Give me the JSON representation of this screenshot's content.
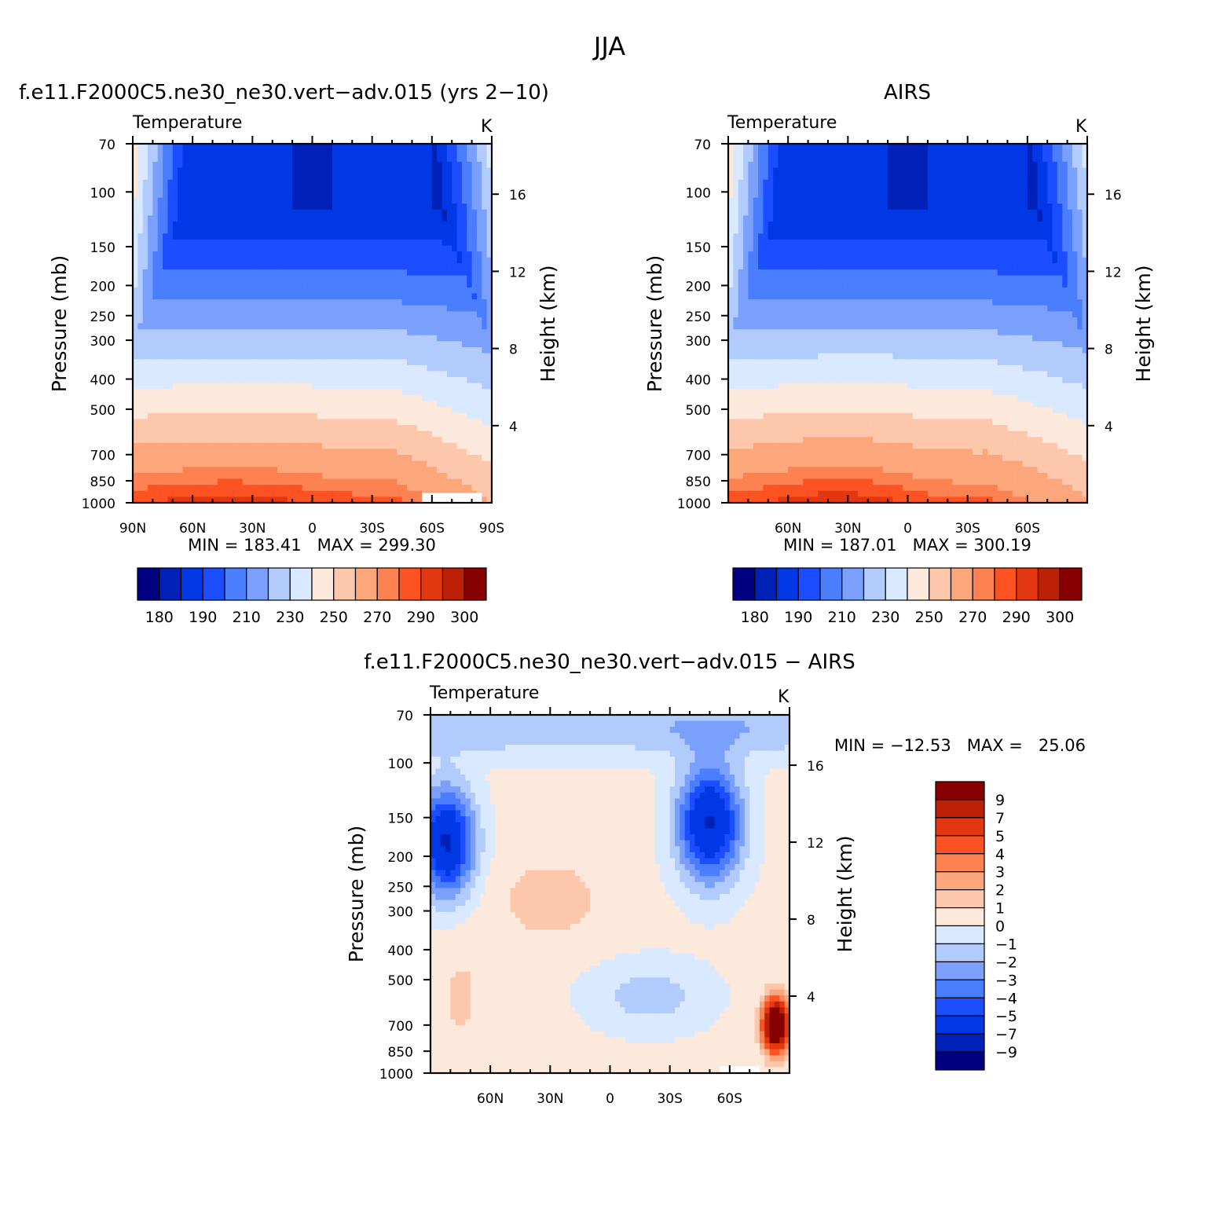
{
  "figure": {
    "title": "JJA"
  },
  "colors": {
    "abs_levels": [
      "#000080",
      "#0021b8",
      "#0038e6",
      "#1c4dff",
      "#4a7dff",
      "#7aa0fb",
      "#b2cbfd",
      "#d9e9ff",
      "#fde9dc",
      "#fcc7aa",
      "#fba67b",
      "#fc8252",
      "#fd5322",
      "#e33711",
      "#bc2107",
      "#860000"
    ],
    "diff_levels": [
      "#000080",
      "#0021b8",
      "#0038e6",
      "#1c4dff",
      "#4a7dff",
      "#7aa0fb",
      "#b2cbfd",
      "#d9e9ff",
      "#fde9dc",
      "#fcc7aa",
      "#fba67b",
      "#fc8252",
      "#fd5322",
      "#e33711",
      "#bc2107",
      "#860000"
    ]
  },
  "chart_data": [
    {
      "type": "heatmap",
      "panel": "model",
      "title": "f.e11.F2000C5.ne30_ne30.vert−adv.015 (yrs 2−10)",
      "left_label": "Temperature",
      "units": "K",
      "ylabel": "Pressure (mb)",
      "y2label": "Height (km)",
      "x_ticks": [
        "90N",
        "60N",
        "30N",
        "0",
        "30S",
        "60S",
        "90S"
      ],
      "x_values": [
        90,
        60,
        30,
        0,
        -30,
        -60,
        -90
      ],
      "xlim": [
        90,
        -90
      ],
      "y_ticks": [
        70,
        100,
        150,
        200,
        250,
        300,
        400,
        500,
        700,
        850,
        1000
      ],
      "ylim": [
        70,
        1000
      ],
      "y_scale": "log",
      "y2_ticks": [
        16,
        12,
        8,
        4
      ],
      "min_max": "MIN = 183.41   MAX = 299.30",
      "min": 183.41,
      "max": 299.3,
      "colorbar_labels": [
        "180",
        "190",
        "210",
        "230",
        "250",
        "270",
        "290",
        "300"
      ]
    },
    {
      "type": "heatmap",
      "panel": "obs",
      "title": "AIRS",
      "left_label": "Temperature",
      "units": "K",
      "ylabel": "Pressure (mb)",
      "y2label": "Height (km)",
      "x_ticks": [
        "60N",
        "30N",
        "0",
        "30S",
        "60S"
      ],
      "x_values": [
        60,
        30,
        0,
        -30,
        -60
      ],
      "xlim": [
        90,
        -90
      ],
      "y_ticks": [
        70,
        100,
        150,
        200,
        250,
        300,
        400,
        500,
        700,
        850,
        1000
      ],
      "ylim": [
        70,
        1000
      ],
      "y_scale": "log",
      "y2_ticks": [
        16,
        12,
        8,
        4
      ],
      "min_max": "MIN = 187.01   MAX = 300.19",
      "min": 187.01,
      "max": 300.19,
      "colorbar_labels": [
        "180",
        "190",
        "210",
        "230",
        "250",
        "270",
        "290",
        "300"
      ]
    },
    {
      "type": "heatmap",
      "panel": "difference",
      "title": "f.e11.F2000C5.ne30_ne30.vert−adv.015 − AIRS",
      "left_label": "Temperature",
      "units": "K",
      "ylabel": "Pressure (mb)",
      "y2label": "Height (km)",
      "x_ticks": [
        "60N",
        "30N",
        "0",
        "30S",
        "60S"
      ],
      "x_values": [
        60,
        30,
        0,
        -30,
        -60
      ],
      "xlim": [
        90,
        -90
      ],
      "y_ticks": [
        70,
        100,
        150,
        200,
        250,
        300,
        400,
        500,
        700,
        850,
        1000
      ],
      "ylim": [
        70,
        1000
      ],
      "y_scale": "log",
      "y2_ticks": [
        16,
        12,
        8,
        4
      ],
      "min_max": "MIN = −12.53   MAX =   25.06",
      "min": -12.53,
      "max": 25.06,
      "colorbar_labels": [
        "9",
        "7",
        "5",
        "4",
        "3",
        "2",
        "1",
        "0",
        "−1",
        "−2",
        "−3",
        "−4",
        "−5",
        "−7",
        "−9"
      ]
    }
  ]
}
